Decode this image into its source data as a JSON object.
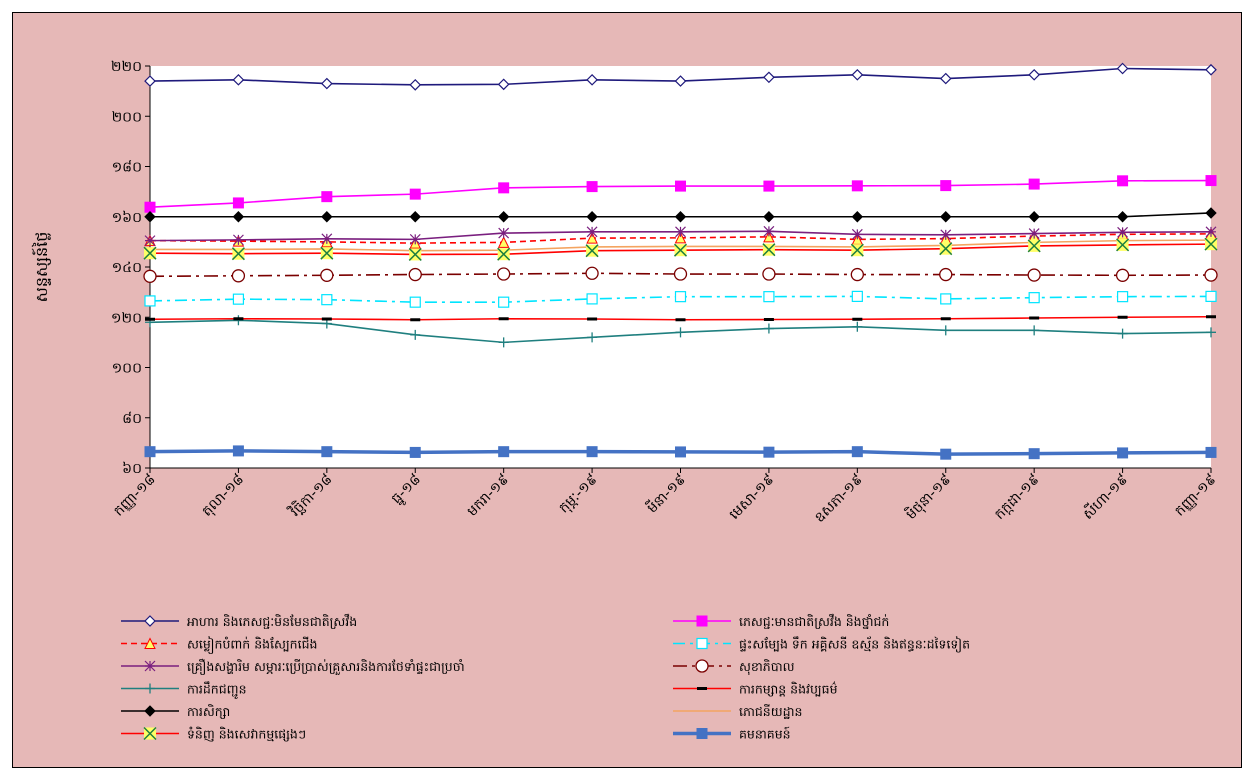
{
  "chart_data": {
    "type": "line",
    "ylabel": "សន្ទស្សន៍ថ្លៃ",
    "ylim": [
      60,
      220
    ],
    "yticks": [
      "៦០",
      "៨០",
      "១០០",
      "១២០",
      "១៤០",
      "១៦០",
      "១៨០",
      "២០០",
      "២២០"
    ],
    "ytick_values": [
      60,
      80,
      100,
      120,
      140,
      160,
      180,
      200,
      220
    ],
    "categories": [
      "កញ្ញា-១៨",
      "តុលា-១៨",
      "វិច្ឆិកា-១៨",
      "ធ្នូ-១៨",
      "មករា-១៩",
      "កុម្ភៈ-១៩",
      "មីនា-១៩",
      "មេសា-១៩",
      "ឧសភា-១៩",
      "មិថុនា-១៩",
      "កក្កដា-១៩",
      "សីហា-១៩",
      "កញ្ញា-១៩"
    ],
    "grid": false,
    "legend_position": "bottom",
    "background": "#e6b8b7",
    "plot_background": "#ffffff",
    "series": [
      {
        "name": "អាហារ និងភេសជ្ជៈមិនមែនជាតិស្រវឹង",
        "color": "#1f1a7c",
        "marker": "diamond-open",
        "dash": "solid",
        "values": [
          214,
          214.5,
          213,
          212.5,
          212.7,
          214.5,
          214,
          215.5,
          216.5,
          215,
          216.5,
          219,
          218.5
        ]
      },
      {
        "name": "ភេសជ្ជៈមានជាតិស្រវឹង និងថ្នាំជក់",
        "color": "#ff00ff",
        "marker": "square-filled",
        "dash": "solid",
        "values": [
          163.8,
          165.5,
          168,
          169,
          171.5,
          172,
          172.2,
          172.2,
          172.3,
          172.4,
          173,
          174.3,
          174.4
        ]
      },
      {
        "name": "សម្លៀកបំពាក់ និងស្បែកជើង",
        "color": "#ff0000",
        "marker": "triangle-open",
        "dash": "dashed",
        "values": [
          150.5,
          150.3,
          150,
          149.5,
          149.8,
          151.5,
          151.6,
          152,
          151,
          151.3,
          152.3,
          153,
          153.2
        ]
      },
      {
        "name": "ផ្ទះសម្បែង ទឹក អគ្គិសនី ឧស្ម័ន និងឥន្ធនៈដទៃទៀត",
        "color": "#00e5ff",
        "marker": "square-open",
        "dash": "dashdot",
        "values": [
          126.5,
          127.2,
          127,
          126,
          126,
          127.3,
          128.2,
          128.2,
          128.3,
          127.3,
          127.8,
          128.2,
          128.3
        ]
      },
      {
        "name": "គ្រឿងសង្ហារិម សម្ភារៈប្រើប្រាស់គ្រួសារនិងការថែទាំផ្ទះជាប្រចាំ",
        "color": "#7a1f7f",
        "marker": "star",
        "dash": "solid",
        "values": [
          150.5,
          150.8,
          151.2,
          151,
          153.5,
          154,
          154,
          154.2,
          153,
          152.8,
          153.3,
          153.8,
          154
        ]
      },
      {
        "name": "សុខាភិបាល",
        "color": "#7a0000",
        "marker": "circle-open",
        "dash": "longdashdot",
        "values": [
          136.3,
          136.5,
          136.7,
          137,
          137.2,
          137.5,
          137.2,
          137.2,
          137,
          137,
          136.8,
          136.7,
          136.8
        ]
      },
      {
        "name": "ការដឹកជញ្ជូន",
        "color": "#1f7f7f",
        "marker": "plus",
        "dash": "solid",
        "values": [
          118,
          118.8,
          117.5,
          113,
          110,
          112,
          114,
          115.5,
          116.2,
          114.8,
          114.8,
          113.5,
          114
        ]
      },
      {
        "name": "ការកម្សាន្ត និងវប្បធម៌",
        "color": "#ff0000",
        "marker": "dash",
        "dash": "solid",
        "values": [
          119.2,
          119.4,
          119.3,
          119,
          119.4,
          119.3,
          119,
          119.1,
          119.2,
          119.4,
          119.7,
          120,
          120.2
        ]
      },
      {
        "name": "ការសិក្សា",
        "color": "#000000",
        "marker": "diamond-filled",
        "dash": "solid",
        "values": [
          160,
          160,
          160,
          160,
          160,
          160,
          160,
          160,
          160,
          160,
          160,
          160,
          161.5
        ]
      },
      {
        "name": "ភោជនីយដ្ឋាន",
        "color": "#f4a460",
        "marker": "none",
        "dash": "solid",
        "values": [
          147,
          147,
          147.2,
          146.5,
          146.7,
          148,
          148.2,
          148.2,
          148,
          148.6,
          149.8,
          150.5,
          150.7
        ]
      },
      {
        "name": "ទំនិញ និងសេវាកម្មផ្សេងៗ",
        "color": "#ff0000",
        "marker": "x-yellow",
        "dash": "solid",
        "values": [
          145.5,
          145.3,
          145.5,
          145,
          145.1,
          146.5,
          146.7,
          146.9,
          146.7,
          147.3,
          148.4,
          148.8,
          149.1
        ]
      },
      {
        "name": "គមនាគមន៍",
        "color": "#4472c4",
        "marker": "square-filled",
        "dash": "thick",
        "values": [
          66.5,
          66.8,
          66.5,
          66.2,
          66.5,
          66.5,
          66.4,
          66.3,
          66.5,
          65.5,
          65.7,
          66,
          66.2
        ]
      }
    ]
  }
}
